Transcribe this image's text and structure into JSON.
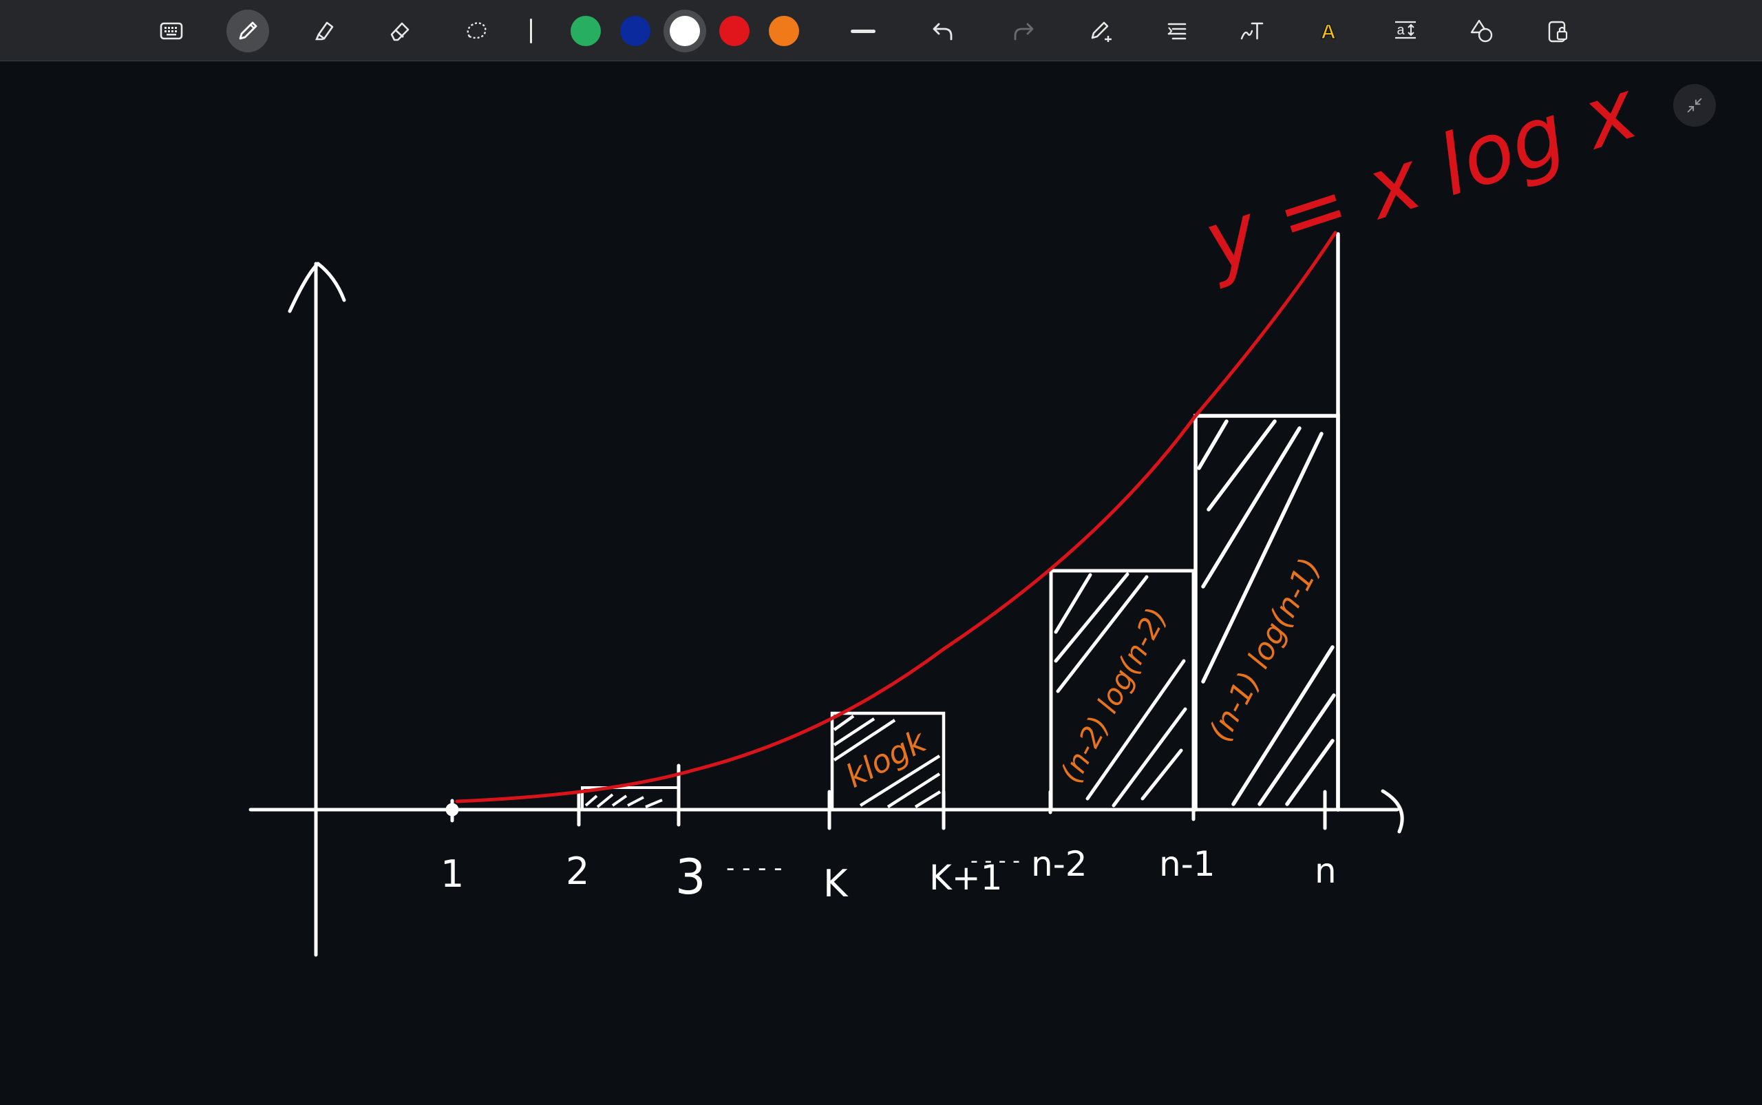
{
  "toolbar": {
    "tools": [
      {
        "name": "keyboard-icon",
        "label": "Keyboard"
      },
      {
        "name": "pen-icon",
        "label": "Pen",
        "active": true
      },
      {
        "name": "highlighter-icon",
        "label": "Highlighter"
      },
      {
        "name": "eraser-icon",
        "label": "Eraser"
      },
      {
        "name": "lasso-icon",
        "label": "Lasso select"
      }
    ],
    "colors": [
      {
        "name": "green",
        "hex": "#27ae60"
      },
      {
        "name": "blue",
        "hex": "#0a2a9e"
      },
      {
        "name": "white",
        "hex": "#ffffff",
        "selected": true
      },
      {
        "name": "red",
        "hex": "#e0161c"
      },
      {
        "name": "orange",
        "hex": "#f07a1a"
      }
    ],
    "right_tools": [
      "stroke-width-icon",
      "undo-icon",
      "redo-icon",
      "pen-settings-icon",
      "text-align-icon",
      "handwriting-icon",
      "text-color-icon",
      "text-size-icon",
      "shapes-icon",
      "lock-icon"
    ],
    "text_color_glyph": "A",
    "text_size_glyph": "a"
  },
  "drawing": {
    "curve_label": "y = x log x",
    "curve_color": "#d8141a",
    "ink_color": "#ffffff",
    "annotation_color": "#e8731d",
    "x_labels": [
      "1",
      "2",
      "3",
      "K",
      "K+1",
      "n-2",
      "n-1",
      "n"
    ],
    "ellipsis_1": "- - - -",
    "ellipsis_2": "- - - -",
    "rect_labels": [
      "klogk",
      "(n-2) log(n-2)",
      "(n-1) log(n-1)"
    ]
  }
}
